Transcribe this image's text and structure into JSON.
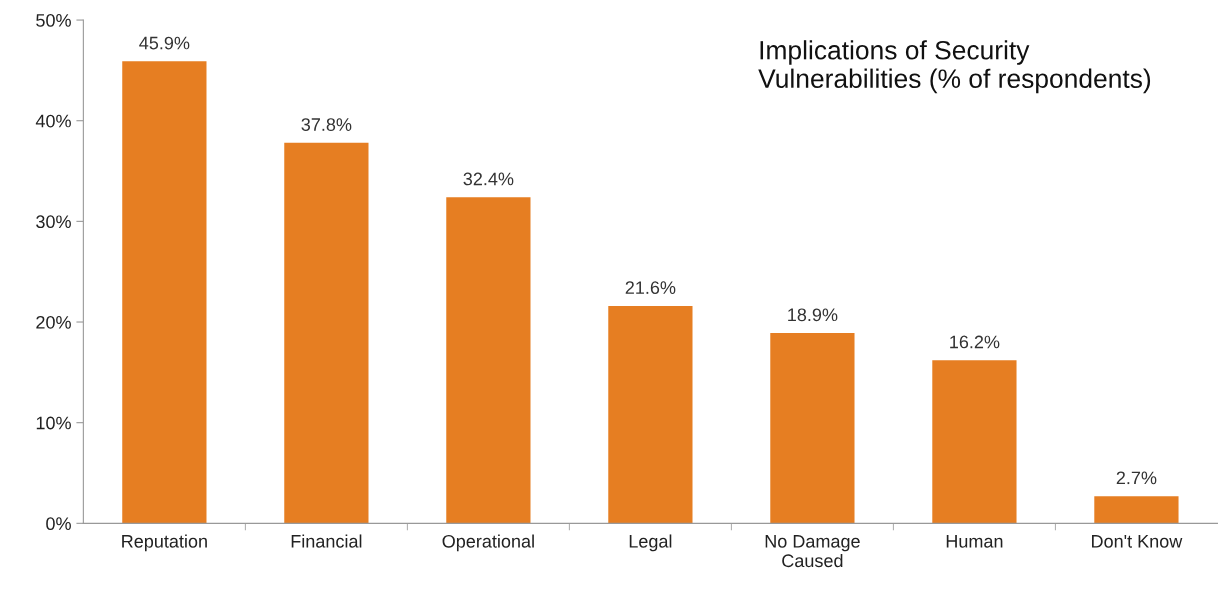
{
  "chart_data": {
    "type": "bar",
    "title": "Implications of Security\nVulnerabilities (% of respondents)",
    "categories": [
      "Reputation",
      "Financial",
      "Operational",
      "Legal",
      "No Damage\nCaused",
      "Human",
      "Don't Know"
    ],
    "values": [
      45.9,
      37.8,
      32.4,
      21.6,
      18.9,
      16.2,
      2.7
    ],
    "value_labels": [
      "45.9%",
      "37.8%",
      "32.4%",
      "21.6%",
      "18.9%",
      "16.2%",
      "2.7%"
    ],
    "color": "#e67e22",
    "ylim": [
      0,
      50
    ],
    "yticks": [
      {
        "value": 0,
        "label": "0%"
      },
      {
        "value": 10,
        "label": "10%"
      },
      {
        "value": 20,
        "label": "20%"
      },
      {
        "value": 30,
        "label": "30%"
      },
      {
        "value": 40,
        "label": "40%"
      },
      {
        "value": 50,
        "label": "50%"
      }
    ],
    "grid": false,
    "legend": false
  }
}
